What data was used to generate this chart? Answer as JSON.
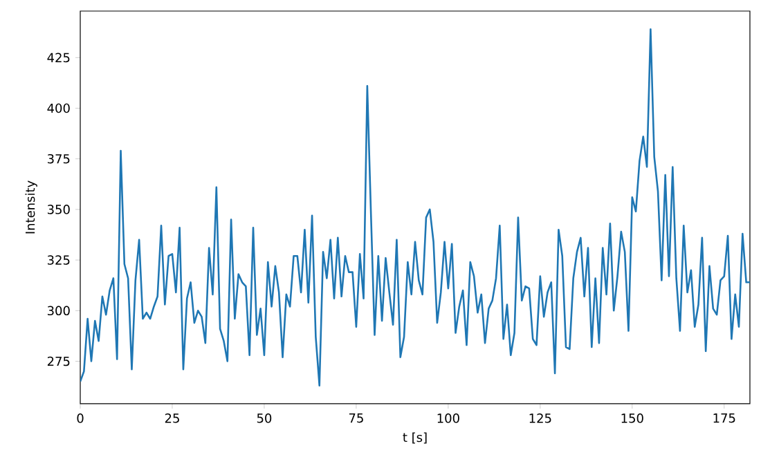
{
  "chart_data": {
    "type": "line",
    "xlabel": "t [s]",
    "ylabel": "Intensity",
    "x": [
      0,
      1,
      2,
      3,
      4,
      5,
      6,
      7,
      8,
      9,
      10,
      11,
      12,
      13,
      14,
      15,
      16,
      17,
      18,
      19,
      20,
      21,
      22,
      23,
      24,
      25,
      26,
      27,
      28,
      29,
      30,
      31,
      32,
      33,
      34,
      35,
      36,
      37,
      38,
      39,
      40,
      41,
      42,
      43,
      44,
      45,
      46,
      47,
      48,
      49,
      50,
      51,
      52,
      53,
      54,
      55,
      56,
      57,
      58,
      59,
      60,
      61,
      62,
      63,
      64,
      65,
      66,
      67,
      68,
      69,
      70,
      71,
      72,
      73,
      74,
      75,
      76,
      77,
      78,
      79,
      80,
      81,
      82,
      83,
      84,
      85,
      86,
      87,
      88,
      89,
      90,
      91,
      92,
      93,
      94,
      95,
      96,
      97,
      98,
      99,
      100,
      101,
      102,
      103,
      104,
      105,
      106,
      107,
      108,
      109,
      110,
      111,
      112,
      113,
      114,
      115,
      116,
      117,
      118,
      119,
      120,
      121,
      122,
      123,
      124,
      125,
      126,
      127,
      128,
      129,
      130,
      131,
      132,
      133,
      134,
      135,
      136,
      137,
      138,
      139,
      140,
      141,
      142,
      143,
      144,
      145,
      146,
      147,
      148,
      149,
      150,
      151,
      152,
      153,
      154,
      155,
      156,
      157,
      158,
      159,
      160,
      161,
      162,
      163,
      164,
      165,
      166,
      167,
      168,
      169,
      170,
      171,
      172,
      173,
      174,
      175,
      176,
      177,
      178,
      179,
      180,
      181,
      182
    ],
    "series": [
      {
        "color": "#1f77b4",
        "values": [
          265,
          270,
          296,
          275,
          295,
          285,
          307,
          298,
          310,
          316,
          276,
          379,
          323,
          316,
          271,
          315,
          335,
          296,
          299,
          296,
          302,
          307,
          342,
          303,
          327,
          328,
          309,
          341,
          271,
          306,
          314,
          294,
          300,
          297,
          284,
          331,
          308,
          361,
          291,
          285,
          275,
          345,
          296,
          318,
          314,
          312,
          278,
          341,
          288,
          301,
          278,
          324,
          302,
          322,
          309,
          277,
          308,
          302,
          327,
          327,
          309,
          340,
          304,
          347,
          287,
          263,
          329,
          316,
          335,
          306,
          336,
          307,
          327,
          319,
          319,
          292,
          328,
          306,
          411,
          348,
          288,
          327,
          295,
          326,
          309,
          293,
          335,
          277,
          287,
          324,
          308,
          334,
          315,
          308,
          346,
          350,
          334,
          294,
          309,
          334,
          311,
          333,
          289,
          302,
          310,
          283,
          324,
          317,
          299,
          308,
          284,
          301,
          305,
          316,
          342,
          286,
          303,
          278,
          289,
          346,
          305,
          312,
          311,
          286,
          283,
          317,
          297,
          309,
          314,
          269,
          340,
          327,
          282,
          281,
          316,
          329,
          336,
          307,
          331,
          282,
          316,
          284,
          331,
          308,
          343,
          300,
          317,
          339,
          329,
          290,
          356,
          349,
          374,
          386,
          371,
          439,
          376,
          359,
          315,
          367,
          317,
          371,
          316,
          290,
          342,
          309,
          320,
          292,
          303,
          336,
          280,
          322,
          301,
          298,
          315,
          317,
          337,
          286,
          308,
          292,
          338,
          314,
          314
        ]
      }
    ],
    "xlim": [
      0,
      182
    ],
    "ylim": [
      254,
      448
    ],
    "xticks": [
      0,
      25,
      50,
      75,
      100,
      125,
      150,
      175
    ],
    "yticks": [
      275,
      300,
      325,
      350,
      375,
      400,
      425
    ],
    "grid": false,
    "marker": "none",
    "line_style": "solid"
  }
}
